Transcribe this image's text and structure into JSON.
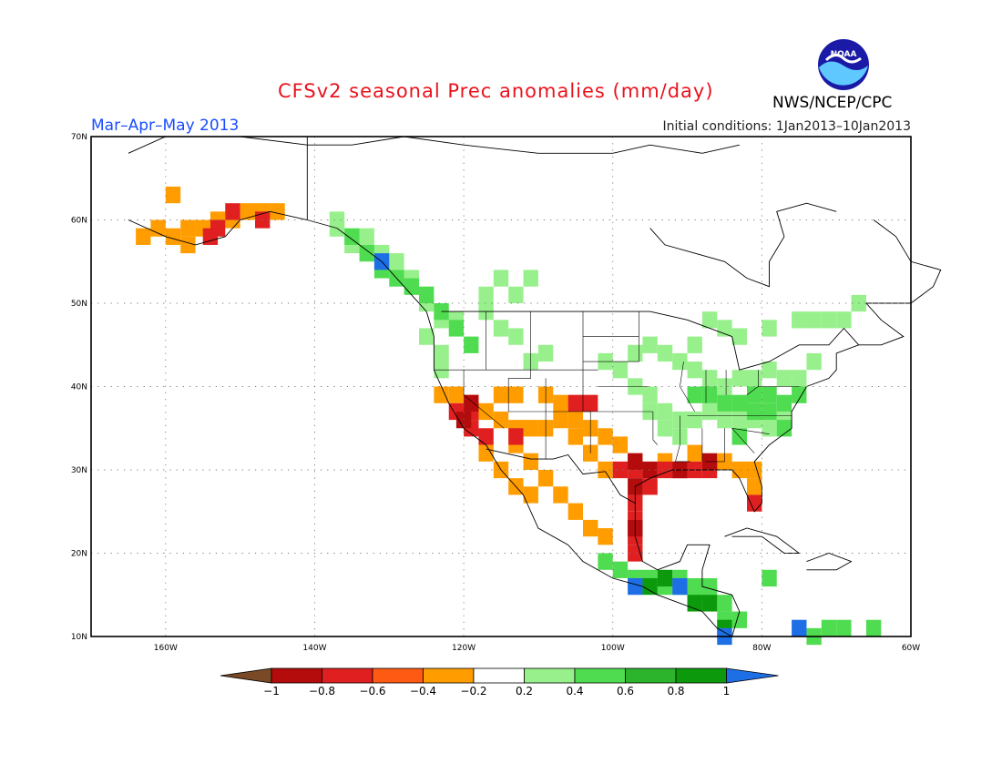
{
  "header": {
    "title": "CFSv2 seasonal Prec anomalies (mm/day)",
    "season": "Mar–Apr–May 2013",
    "initial_conditions": "Initial conditions: 1Jan2013–10Jan2013",
    "org": "NWS/NCEP/CPC",
    "logo_text": "NOAA"
  },
  "map": {
    "lon_range": [
      -170,
      -60
    ],
    "lat_range": [
      10,
      70
    ],
    "lon_ticks": [
      {
        "lon": -160,
        "label": "160W"
      },
      {
        "lon": -140,
        "label": "140W"
      },
      {
        "lon": -120,
        "label": "120W"
      },
      {
        "lon": -100,
        "label": "100W"
      },
      {
        "lon": -80,
        "label": "80W"
      },
      {
        "lon": -60,
        "label": "60W"
      }
    ],
    "lat_ticks": [
      {
        "lat": 10,
        "label": "10N"
      },
      {
        "lat": 20,
        "label": "20N"
      },
      {
        "lat": 30,
        "label": "30N"
      },
      {
        "lat": 40,
        "label": "40N"
      },
      {
        "lat": 50,
        "label": "50N"
      },
      {
        "lat": 60,
        "label": "60N"
      },
      {
        "lat": 70,
        "label": "70N"
      }
    ],
    "grid": "dotted"
  },
  "colorbar": {
    "labels": [
      "−1",
      "−0.8",
      "−0.6",
      "−0.4",
      "−0.2",
      "0.2",
      "0.4",
      "0.6",
      "0.8",
      "1"
    ],
    "colors": [
      "#7a4a26",
      "#b40c0c",
      "#e02020",
      "#ff5a14",
      "#ff9d00",
      "#ffffff",
      "#98f08c",
      "#50dc50",
      "#2db42d",
      "#0c9a0c",
      "#1e6fe6"
    ]
  },
  "anomaly_regions": [
    {
      "name": "alaska-dry",
      "color": "#ff9d00",
      "cells": [
        [
          -163,
          58
        ],
        [
          -161,
          59
        ],
        [
          -159,
          58
        ],
        [
          -157,
          59
        ],
        [
          -155,
          59
        ],
        [
          -153,
          60
        ],
        [
          -151,
          60
        ],
        [
          -149,
          61
        ],
        [
          -147,
          61
        ],
        [
          -145,
          61
        ],
        [
          -157,
          57
        ],
        [
          -159,
          63
        ]
      ]
    },
    {
      "name": "alaska-very-dry",
      "color": "#e02020",
      "cells": [
        [
          -153,
          59
        ],
        [
          -151,
          61
        ],
        [
          -147,
          60
        ],
        [
          -154,
          58
        ]
      ]
    },
    {
      "name": "california-dry",
      "color": "#ff9d00",
      "cells": [
        [
          -123,
          39
        ],
        [
          -121,
          39
        ],
        [
          -119,
          38
        ],
        [
          -117,
          37
        ],
        [
          -115,
          36
        ],
        [
          -113,
          35
        ],
        [
          -111,
          35
        ],
        [
          -109,
          35
        ],
        [
          -107,
          36
        ],
        [
          -105,
          36
        ],
        [
          -103,
          35
        ],
        [
          -101,
          34
        ],
        [
          -99,
          33
        ],
        [
          -113,
          33
        ],
        [
          -111,
          31
        ],
        [
          -109,
          29
        ],
        [
          -107,
          27
        ],
        [
          -105,
          25
        ],
        [
          -103,
          23
        ],
        [
          -101,
          22
        ],
        [
          -115,
          39
        ],
        [
          -113,
          39
        ],
        [
          -109,
          39
        ],
        [
          -107,
          38
        ],
        [
          -105,
          34
        ],
        [
          -103,
          32
        ],
        [
          -101,
          30
        ],
        [
          -97,
          31
        ],
        [
          -93,
          31
        ],
        [
          -89,
          32
        ],
        [
          -85,
          31
        ],
        [
          -83,
          30
        ],
        [
          -81,
          30
        ],
        [
          -81,
          28
        ],
        [
          -117,
          32
        ],
        [
          -115,
          30
        ],
        [
          -113,
          28
        ],
        [
          -111,
          27
        ]
      ]
    },
    {
      "name": "southwest-very-dry",
      "color": "#e02020",
      "cells": [
        [
          -121,
          37
        ],
        [
          -119,
          35
        ],
        [
          -117,
          34
        ],
        [
          -119,
          37
        ],
        [
          -113,
          34
        ],
        [
          -105,
          38
        ],
        [
          -103,
          38
        ],
        [
          -99,
          30
        ],
        [
          -97,
          30
        ],
        [
          -95,
          28
        ],
        [
          -93,
          30
        ],
        [
          -91,
          30
        ],
        [
          -89,
          30
        ],
        [
          -87,
          30
        ],
        [
          -97,
          26
        ],
        [
          -97,
          24
        ],
        [
          -97,
          22
        ],
        [
          -97,
          20
        ],
        [
          -81,
          26
        ]
      ]
    },
    {
      "name": "gulf-extreme-dry",
      "color": "#b40c0c",
      "cells": [
        [
          -119,
          38
        ],
        [
          -97,
          31
        ],
        [
          -95,
          30
        ],
        [
          -97,
          28
        ],
        [
          -97,
          23
        ],
        [
          -91,
          30
        ],
        [
          -87,
          31
        ],
        [
          -120,
          36
        ]
      ]
    },
    {
      "name": "pacific-nw-wet",
      "color": "#98f08c",
      "cells": [
        [
          -125,
          50
        ],
        [
          -123,
          48
        ],
        [
          -125,
          46
        ],
        [
          -123,
          44
        ],
        [
          -123,
          42
        ],
        [
          -121,
          48
        ],
        [
          -117,
          49
        ],
        [
          -115,
          47
        ],
        [
          -113,
          46
        ],
        [
          -111,
          43
        ],
        [
          -109,
          44
        ],
        [
          -133,
          58
        ],
        [
          -135,
          57
        ],
        [
          -137,
          60
        ],
        [
          -129,
          55
        ],
        [
          -131,
          56
        ],
        [
          -127,
          53
        ],
        [
          -137,
          59
        ],
        [
          -117,
          51
        ],
        [
          -115,
          53
        ],
        [
          -113,
          51
        ],
        [
          -111,
          53
        ]
      ]
    },
    {
      "name": "pacific-nw-wetter",
      "color": "#50dc50",
      "cells": [
        [
          -127,
          52
        ],
        [
          -129,
          53
        ],
        [
          -131,
          54
        ],
        [
          -125,
          51
        ],
        [
          -123,
          49
        ],
        [
          -133,
          56
        ],
        [
          -135,
          58
        ],
        [
          -121,
          47
        ],
        [
          -119,
          45
        ]
      ]
    },
    {
      "name": "midwest-wet",
      "color": "#98f08c",
      "cells": [
        [
          -101,
          43
        ],
        [
          -99,
          42
        ],
        [
          -97,
          44
        ],
        [
          -95,
          45
        ],
        [
          -93,
          44
        ],
        [
          -91,
          43
        ],
        [
          -89,
          42
        ],
        [
          -87,
          41
        ],
        [
          -85,
          40
        ],
        [
          -83,
          41
        ],
        [
          -81,
          41
        ],
        [
          -79,
          42
        ],
        [
          -77,
          41
        ],
        [
          -75,
          41
        ],
        [
          -73,
          43
        ],
        [
          -95,
          37
        ],
        [
          -93,
          37
        ],
        [
          -91,
          36
        ],
        [
          -89,
          36
        ],
        [
          -87,
          37
        ],
        [
          -85,
          36
        ],
        [
          -83,
          36
        ],
        [
          -81,
          36
        ],
        [
          -79,
          35
        ],
        [
          -77,
          36
        ],
        [
          -85,
          47
        ],
        [
          -87,
          48
        ],
        [
          -83,
          46
        ],
        [
          -79,
          47
        ],
        [
          -75,
          48
        ],
        [
          -73,
          48
        ],
        [
          -71,
          48
        ],
        [
          -69,
          48
        ],
        [
          -67,
          50
        ],
        [
          -89,
          45
        ],
        [
          -97,
          40
        ],
        [
          -95,
          39
        ],
        [
          -93,
          35
        ],
        [
          -91,
          34
        ]
      ]
    },
    {
      "name": "east-wetter",
      "color": "#50dc50",
      "cells": [
        [
          -83,
          38
        ],
        [
          -81,
          39
        ],
        [
          -79,
          39
        ],
        [
          -77,
          38
        ],
        [
          -75,
          39
        ],
        [
          -81,
          37
        ],
        [
          -79,
          37
        ],
        [
          -85,
          38
        ],
        [
          -87,
          39
        ],
        [
          -89,
          39
        ],
        [
          -77,
          35
        ],
        [
          -83,
          34
        ]
      ]
    },
    {
      "name": "central-america-wet",
      "color": "#50dc50",
      "cells": [
        [
          -101,
          19
        ],
        [
          -99,
          18
        ],
        [
          -97,
          17
        ],
        [
          -95,
          17
        ],
        [
          -93,
          16
        ],
        [
          -91,
          16
        ],
        [
          -89,
          15
        ],
        [
          -87,
          15
        ],
        [
          -85,
          14
        ],
        [
          -83,
          12
        ],
        [
          -85,
          12
        ],
        [
          -91,
          17
        ],
        [
          -87,
          16
        ],
        [
          -89,
          16
        ],
        [
          -79,
          17
        ],
        [
          -73,
          10
        ],
        [
          -71,
          11
        ],
        [
          -69,
          11
        ],
        [
          -65,
          11
        ]
      ]
    },
    {
      "name": "central-america-very-wet",
      "color": "#0c9a0c",
      "cells": [
        [
          -95,
          16
        ],
        [
          -93,
          17
        ],
        [
          -87,
          14
        ],
        [
          -85,
          11
        ],
        [
          -89,
          14
        ]
      ]
    },
    {
      "name": "max-wet",
      "color": "#1e6fe6",
      "cells": [
        [
          -131,
          55
        ],
        [
          -97,
          16
        ],
        [
          -91,
          16
        ],
        [
          -85,
          10
        ],
        [
          -75,
          11
        ]
      ]
    }
  ]
}
